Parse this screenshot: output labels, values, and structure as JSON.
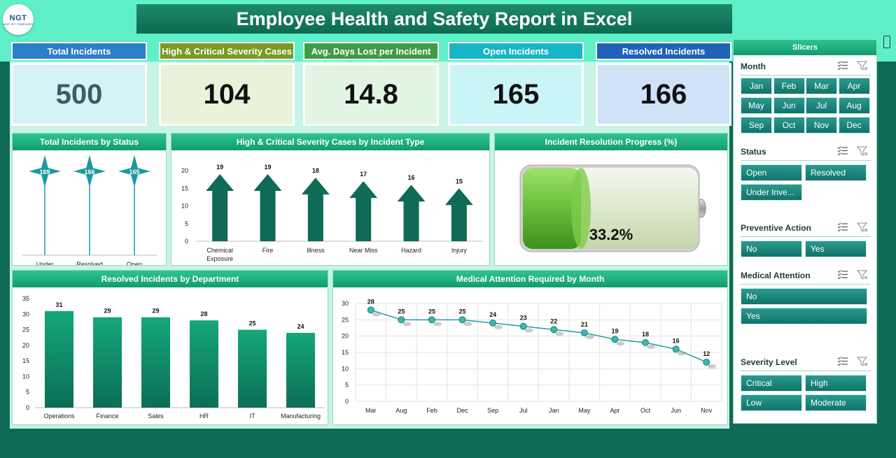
{
  "logo": {
    "text": "NGT",
    "sub": "BEST PPT TEMPLATES"
  },
  "title": "Employee Health and Safety Report in Excel",
  "kpis": [
    {
      "label": "Total Incidents",
      "value": "500",
      "header_color": "#2a7fc8",
      "bg": "#d5f2f7",
      "value_color": "#3d5a66"
    },
    {
      "label": "High & Critical Severity Cases",
      "value": "104",
      "header_color": "#7a9a24",
      "bg": "#e9f3d9",
      "value_color": "#111111"
    },
    {
      "label": "Avg. Days Lost per Incident",
      "value": "14.8",
      "header_color": "#3f9b46",
      "bg": "#e2f5e2",
      "value_color": "#111111"
    },
    {
      "label": "Open Incidents",
      "value": "165",
      "header_color": "#16b6c6",
      "bg": "#c9f5f6",
      "value_color": "#111111"
    },
    {
      "label": "Resolved Incidents",
      "value": "166",
      "header_color": "#1f62b8",
      "bg": "#cfe3f7",
      "value_color": "#111111"
    }
  ],
  "charts": {
    "status": {
      "title": "Total Incidents by Status",
      "chart_data": {
        "type": "bar",
        "categories": [
          "Under Investigation",
          "Resolved",
          "Open"
        ],
        "values": [
          169,
          166,
          165
        ]
      }
    },
    "severity": {
      "title": "High & Critical Severity Cases by Incident Type",
      "chart_data": {
        "type": "bar",
        "categories": [
          "Chemical Exposure",
          "Fire",
          "Illness",
          "Near Miss",
          "Hazard",
          "Injury"
        ],
        "values": [
          19,
          19,
          18,
          17,
          16,
          15
        ],
        "ylim": [
          0,
          20
        ],
        "yticks": [
          0,
          5,
          10,
          15,
          20
        ]
      }
    },
    "resolution": {
      "title": "Incident Resolution Progress (%)",
      "value_label": "33.2%",
      "progress": 0.332
    },
    "department": {
      "title": "Resolved Incidents by Department",
      "chart_data": {
        "type": "bar",
        "categories": [
          "Operations",
          "Finance",
          "Sales",
          "HR",
          "IT",
          "Manufacturing"
        ],
        "values": [
          31,
          29,
          29,
          28,
          25,
          24
        ],
        "ylim": [
          0,
          35
        ],
        "yticks": [
          0,
          5,
          10,
          15,
          20,
          25,
          30,
          35
        ]
      }
    },
    "medical": {
      "title": "Medical Attention Required by Month",
      "chart_data": {
        "type": "line",
        "categories": [
          "Mar",
          "Aug",
          "Feb",
          "Dec",
          "Sep",
          "Jul",
          "Jan",
          "May",
          "Apr",
          "Oct",
          "Jun",
          "Nov"
        ],
        "values": [
          28,
          25,
          25,
          25,
          24,
          23,
          22,
          21,
          19,
          18,
          16,
          12
        ],
        "ylim": [
          0,
          30
        ],
        "yticks": [
          0,
          5,
          10,
          15,
          20,
          25,
          30
        ]
      }
    }
  },
  "slicers": {
    "title": "Slicers",
    "month": {
      "title": "Month",
      "items": [
        "Jan",
        "Feb",
        "Mar",
        "Apr",
        "May",
        "Jun",
        "Jul",
        "Aug",
        "Sep",
        "Oct",
        "Nov",
        "Dec"
      ]
    },
    "status": {
      "title": "Status",
      "items": [
        "Open",
        "Resolved",
        "Under Inve..."
      ]
    },
    "preventive": {
      "title": "Preventive Action",
      "items": [
        "No",
        "Yes"
      ]
    },
    "medical": {
      "title": "Medical Attention",
      "items": [
        "No",
        "Yes"
      ]
    },
    "severity": {
      "title": "Severity Level",
      "items": [
        "Critical",
        "High",
        "Low",
        "Moderate"
      ]
    }
  },
  "colors": {
    "accent": "#12a070",
    "bar_dark": "#0f6b55",
    "teal": "#1a9aa0",
    "line": "#2a9aa0"
  }
}
